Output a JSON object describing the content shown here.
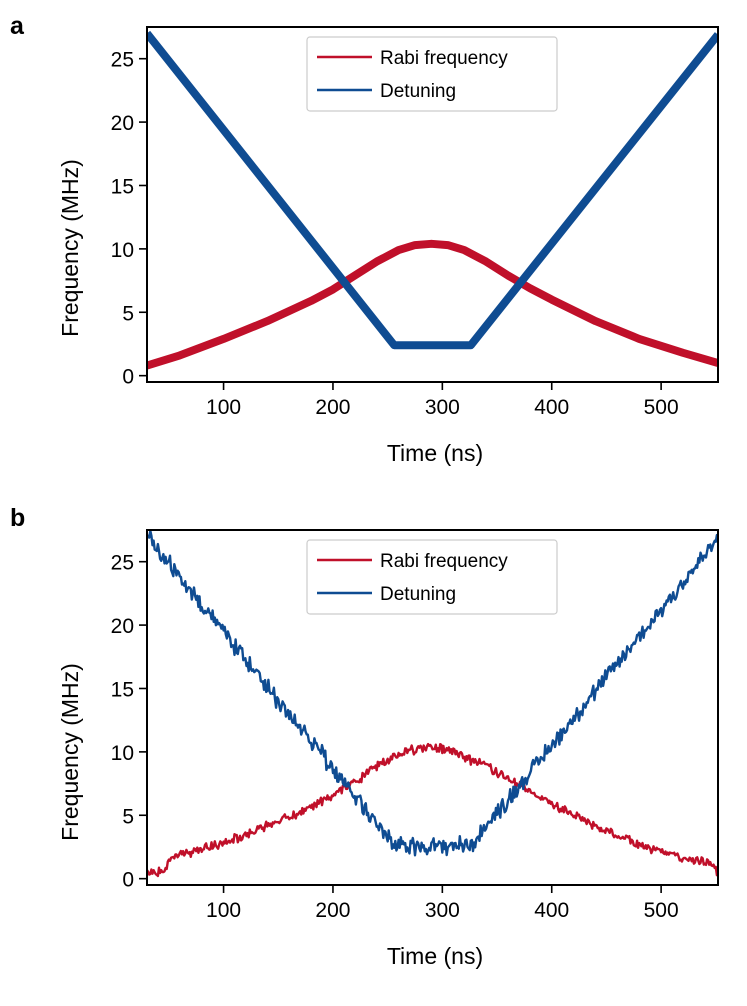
{
  "chart_data": [
    {
      "panel_label": "a",
      "type": "line",
      "title": "",
      "xlabel": "Time (ns)",
      "ylabel": "Frequency (MHz)",
      "xlim": [
        30,
        552
      ],
      "ylim": [
        -0.5,
        27.5
      ],
      "xticks": [
        100,
        200,
        300,
        400,
        500
      ],
      "yticks": [
        0,
        5,
        10,
        15,
        20,
        25
      ],
      "grid": false,
      "legend_position": "top-center",
      "noise": false,
      "series": [
        {
          "name": "Rabi frequency",
          "color": "#c0102a",
          "x": [
            30,
            60,
            100,
            140,
            180,
            200,
            220,
            240,
            260,
            275,
            290,
            305,
            320,
            340,
            360,
            380,
            400,
            440,
            480,
            520,
            552
          ],
          "y": [
            0.8,
            1.6,
            2.9,
            4.3,
            5.9,
            6.8,
            7.9,
            9.0,
            9.9,
            10.3,
            10.4,
            10.3,
            9.9,
            9.0,
            7.9,
            6.9,
            6.0,
            4.3,
            2.9,
            1.8,
            1.0
          ]
        },
        {
          "name": "Detuning",
          "color": "#0f4c92",
          "x": [
            30,
            256,
            326,
            552
          ],
          "y": [
            27.0,
            2.4,
            2.4,
            26.9
          ]
        }
      ]
    },
    {
      "panel_label": "b",
      "type": "line",
      "title": "",
      "xlabel": "Time (ns)",
      "ylabel": "Frequency (MHz)",
      "xlim": [
        30,
        552
      ],
      "ylim": [
        -0.5,
        27.5
      ],
      "xticks": [
        100,
        200,
        300,
        400,
        500
      ],
      "yticks": [
        0,
        5,
        10,
        15,
        20,
        25
      ],
      "grid": false,
      "legend_position": "top-center",
      "noise": true,
      "series": [
        {
          "name": "Rabi frequency",
          "color": "#c0102a",
          "x": [
            30,
            45,
            55,
            70,
            100,
            140,
            180,
            200,
            220,
            240,
            260,
            275,
            290,
            305,
            320,
            340,
            360,
            380,
            400,
            440,
            480,
            520,
            540,
            552
          ],
          "y": [
            0.5,
            0.6,
            1.9,
            2.0,
            2.8,
            4.2,
            5.6,
            6.6,
            7.6,
            8.9,
            9.8,
            10.2,
            10.4,
            10.2,
            9.6,
            8.9,
            7.9,
            6.8,
            5.9,
            4.1,
            2.7,
            1.6,
            1.4,
            0.5
          ]
        },
        {
          "name": "Detuning",
          "color": "#0f4c92",
          "x": [
            30,
            256,
            326,
            552
          ],
          "y": [
            27.0,
            2.6,
            2.6,
            26.8
          ]
        }
      ]
    }
  ]
}
